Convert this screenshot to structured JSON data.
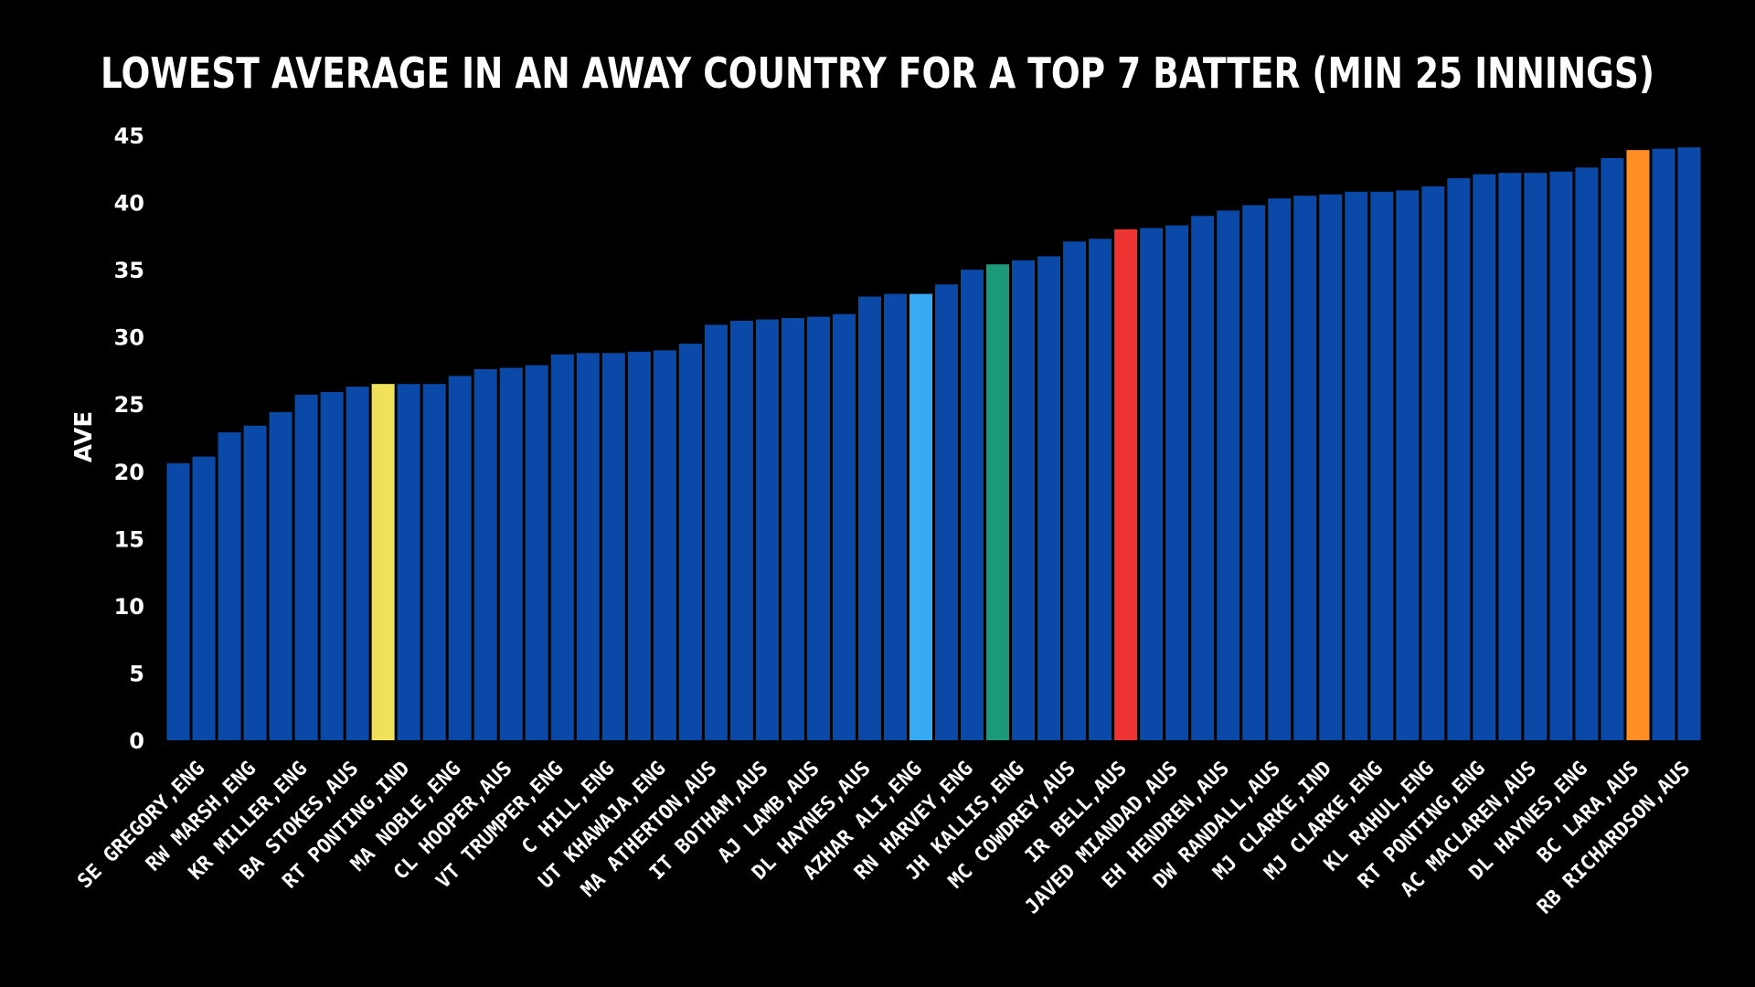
{
  "chart_data": {
    "type": "bar",
    "title": "LOWEST AVERAGE IN AN AWAY COUNTRY FOR A TOP 7 BATTER (MIN 25 INNINGS)",
    "xlabel": "",
    "ylabel": "AVE",
    "ylim": [
      0,
      45
    ],
    "yticks": [
      "0",
      "5",
      "10",
      "15",
      "20",
      "25",
      "30",
      "35",
      "40",
      "45"
    ],
    "grid": false,
    "colors": {
      "background": "#000000",
      "default_bar": "#0a49a8",
      "text": "#ffffff"
    },
    "categories": [
      "SE GREGORY,ENG",
      "",
      "RW MARSH,ENG",
      "",
      "KR MILLER,ENG",
      "",
      "BA STOKES,AUS",
      "",
      "RT PONTING,IND",
      "",
      "MA NOBLE,ENG",
      "",
      "CL HOOPER,AUS",
      "",
      "VT TRUMPER,ENG",
      "",
      "C HILL,ENG",
      "",
      "UT KHAWAJA,ENG",
      "",
      "MA ATHERTON,AUS",
      "",
      "IT BOTHAM,AUS",
      "",
      "AJ LAMB,AUS",
      "",
      "DL HAYNES,AUS",
      "",
      "AZHAR ALI,ENG",
      "",
      "RN HARVEY,ENG",
      "",
      "JH KALLIS,ENG",
      "",
      "MC COWDREY,AUS",
      "",
      "IR BELL,AUS",
      "",
      "JAVED MIANDAD,AUS",
      "",
      "EH HENDREN,AUS",
      "",
      "DW RANDALL,AUS",
      "",
      "MJ CLARKE,IND",
      "",
      "MJ CLARKE,ENG",
      "",
      "KL RAHUL,ENG",
      "",
      "RT PONTING,ENG",
      "",
      "AC MACLAREN,AUS",
      "",
      "DL HAYNES,ENG",
      "",
      "BC LARA,AUS",
      "",
      "RB RICHARDSON,AUS",
      ""
    ],
    "values": [
      20.6,
      21.1,
      22.9,
      23.4,
      24.4,
      25.7,
      25.9,
      26.3,
      26.5,
      26.5,
      26.5,
      27.1,
      27.6,
      27.7,
      27.9,
      28.7,
      28.8,
      28.8,
      28.9,
      29.0,
      29.5,
      30.9,
      31.2,
      31.3,
      31.4,
      31.5,
      31.7,
      33.0,
      33.2,
      33.2,
      33.9,
      35.0,
      35.4,
      35.7,
      36.0,
      37.1,
      37.3,
      38.0,
      38.1,
      38.3,
      39.0,
      39.4,
      39.8,
      40.3,
      40.5,
      40.6,
      40.8,
      40.8,
      40.9,
      41.2,
      41.8,
      42.1,
      42.2,
      42.2,
      42.3,
      42.6,
      43.3,
      43.9,
      44.0,
      44.1
    ],
    "highlights": [
      {
        "index": 8,
        "color": "#f0e05a"
      },
      {
        "index": 29,
        "color": "#36aaf2"
      },
      {
        "index": 32,
        "color": "#1c9a78"
      },
      {
        "index": 37,
        "color": "#ee3333"
      },
      {
        "index": 57,
        "color": "#ff8f25"
      }
    ]
  }
}
